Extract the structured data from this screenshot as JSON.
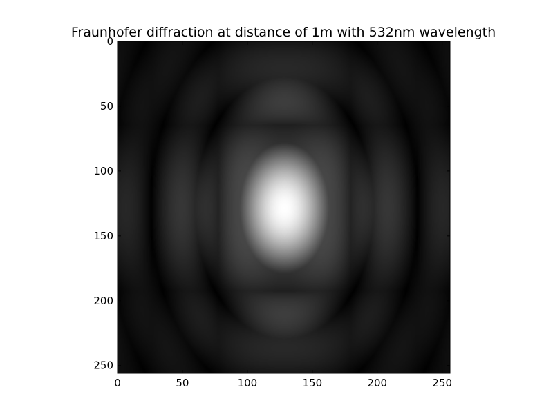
{
  "chart_data": {
    "type": "heatmap",
    "title": "Fraunhofer diffraction at distance of 1m with 532nm wavelength",
    "colormap": "gray",
    "xlim": [
      0,
      256
    ],
    "ylim": [
      256,
      0
    ],
    "xticks": [
      0,
      50,
      100,
      150,
      200,
      250
    ],
    "yticks": [
      0,
      50,
      100,
      150,
      200,
      250
    ],
    "peak": {
      "x": 128,
      "y": 128
    },
    "fringe_period_x": 51,
    "fringe_period_y": 64
  }
}
